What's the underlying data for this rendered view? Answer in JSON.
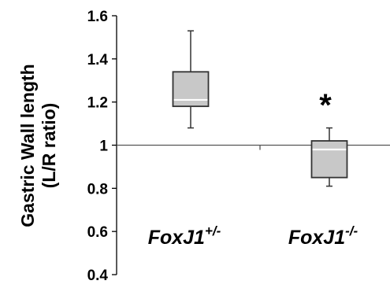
{
  "chart_data": {
    "type": "box",
    "title": "",
    "ylabel_line1": "Gastric Wall length",
    "ylabel_line2": "(L/R ratio)",
    "ylim": [
      0.4,
      1.6
    ],
    "yticks": [
      "0.4",
      "0.6",
      "0.8",
      "1",
      "1.2",
      "1.4",
      "1.6"
    ],
    "reference_line": 1,
    "grid": false,
    "colors": {
      "box_fill": "#c8c8c8",
      "stroke": "#333333",
      "median": "#ffffff"
    },
    "categories": [
      {
        "base": "FoxJ1",
        "sup": "+/-"
      },
      {
        "base": "FoxJ1",
        "sup": "-/-"
      }
    ],
    "series": [
      {
        "min": 1.08,
        "q1": 1.18,
        "median": 1.21,
        "q3": 1.34,
        "max": 1.53
      },
      {
        "min": 0.81,
        "q1": 0.85,
        "median": 0.98,
        "q3": 1.02,
        "max": 1.08
      }
    ],
    "annotations": [
      {
        "text": "*",
        "category_index": 1
      }
    ]
  }
}
